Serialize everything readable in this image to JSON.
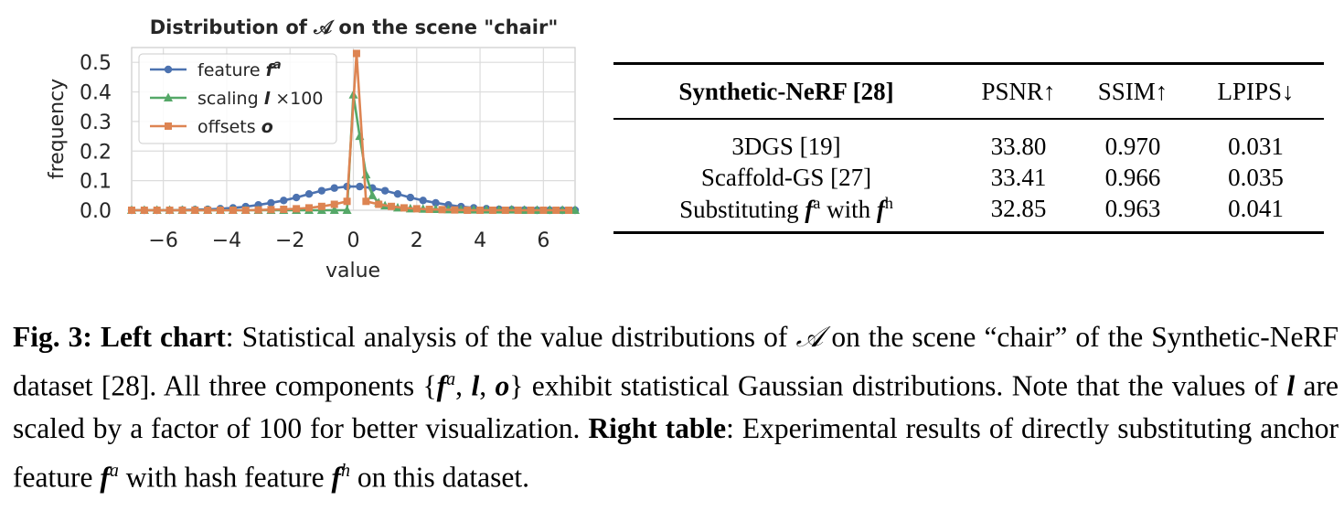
{
  "chart_data": {
    "type": "line",
    "title": "Distribution of 𝒜 on the scene \"chair\"",
    "xlabel": "value",
    "ylabel": "frequency",
    "xlim": [
      -7,
      7
    ],
    "ylim": [
      0,
      0.55
    ],
    "xticks": [
      -6,
      -4,
      -2,
      0,
      2,
      4,
      6
    ],
    "xtick_labels": [
      "−6",
      "−4",
      "−2",
      "0",
      "2",
      "4",
      "6"
    ],
    "yticks": [
      0.0,
      0.1,
      0.2,
      0.3,
      0.4,
      0.5
    ],
    "ytick_labels": [
      "0.0",
      "0.1",
      "0.2",
      "0.3",
      "0.4",
      "0.5"
    ],
    "grid": true,
    "legend_position": "top-left",
    "series": [
      {
        "name": "feature",
        "legend_math": "f",
        "legend_sup": "a",
        "legend_suffix": "",
        "color": "#4c72b0",
        "marker": "circle",
        "x": [
          -7.0,
          -6.6,
          -6.2,
          -5.8,
          -5.4,
          -5.0,
          -4.6,
          -4.2,
          -3.8,
          -3.4,
          -3.0,
          -2.6,
          -2.2,
          -1.8,
          -1.4,
          -1.0,
          -0.6,
          -0.2,
          0.2,
          0.6,
          1.0,
          1.4,
          1.8,
          2.2,
          2.6,
          3.0,
          3.4,
          3.8,
          4.2,
          4.6,
          5.0,
          5.4,
          5.8,
          6.2,
          6.6,
          7.0
        ],
        "y": [
          0.0,
          0.0,
          0.0,
          0.0,
          0.001,
          0.002,
          0.003,
          0.005,
          0.008,
          0.012,
          0.018,
          0.025,
          0.033,
          0.043,
          0.055,
          0.066,
          0.075,
          0.08,
          0.08,
          0.075,
          0.066,
          0.055,
          0.043,
          0.033,
          0.025,
          0.018,
          0.012,
          0.008,
          0.005,
          0.003,
          0.002,
          0.001,
          0.0,
          0.0,
          0.0,
          0.0
        ]
      },
      {
        "name": "scaling",
        "legend_math": "l",
        "legend_sup": "",
        "legend_suffix": " ×100",
        "color": "#55a868",
        "marker": "triangle",
        "x": [
          -7.0,
          -6.6,
          -6.2,
          -5.8,
          -5.4,
          -5.0,
          -4.6,
          -4.2,
          -3.8,
          -3.4,
          -3.0,
          -2.6,
          -2.2,
          -1.8,
          -1.4,
          -1.0,
          -0.6,
          -0.2,
          0.0,
          0.2,
          0.4,
          0.6,
          0.8,
          1.0,
          1.4,
          1.8,
          2.2,
          2.6,
          3.0,
          3.4,
          3.8,
          4.2,
          4.6,
          5.0,
          5.4,
          5.8,
          6.2,
          6.6,
          7.0
        ],
        "y": [
          0.0,
          0.0,
          0.0,
          0.0,
          0.0,
          0.0,
          0.0,
          0.0,
          0.0,
          0.0,
          0.0,
          0.0,
          0.0,
          0.0,
          0.0,
          0.0,
          0.0,
          0.0,
          0.39,
          0.25,
          0.12,
          0.05,
          0.025,
          0.015,
          0.008,
          0.005,
          0.004,
          0.003,
          0.002,
          0.002,
          0.001,
          0.001,
          0.001,
          0.001,
          0.0,
          0.0,
          0.0,
          0.0,
          0.0
        ]
      },
      {
        "name": "offsets",
        "legend_math": "o",
        "legend_sup": "",
        "legend_suffix": "",
        "color": "#dd8452",
        "marker": "square",
        "x": [
          -7.0,
          -6.6,
          -6.2,
          -5.8,
          -5.4,
          -5.0,
          -4.6,
          -4.2,
          -3.8,
          -3.4,
          -3.0,
          -2.6,
          -2.2,
          -1.8,
          -1.4,
          -1.0,
          -0.6,
          -0.2,
          0.1,
          0.4,
          0.8,
          1.2,
          1.6,
          2.0,
          2.4,
          2.8,
          3.2,
          3.6,
          4.0,
          4.4,
          4.8,
          5.2,
          5.6,
          6.0,
          6.4,
          6.8
        ],
        "y": [
          0.0,
          0.0,
          0.0,
          0.0,
          0.0,
          0.0,
          0.0,
          0.0,
          0.0,
          0.0,
          0.001,
          0.002,
          0.003,
          0.005,
          0.008,
          0.013,
          0.02,
          0.03,
          0.53,
          0.03,
          0.02,
          0.013,
          0.008,
          0.005,
          0.003,
          0.002,
          0.001,
          0.0,
          0.0,
          0.0,
          0.0,
          0.0,
          0.0,
          0.0,
          0.0,
          0.0
        ]
      }
    ]
  },
  "table": {
    "header": {
      "dataset": "Synthetic-NeRF [28]",
      "psnr": "PSNR↑",
      "ssim": "SSIM↑",
      "lpips": "LPIPS↓"
    },
    "rows": [
      {
        "method": "3DGS [19]",
        "psnr": "33.80",
        "ssim": "0.970",
        "lpips": "0.031"
      },
      {
        "method": "Scaffold-GS [27]",
        "psnr": "33.41",
        "ssim": "0.966",
        "lpips": "0.035"
      },
      {
        "method_prefix": "Substituting ",
        "math_a": "f",
        "sup_a": "a",
        "method_mid": " with ",
        "math_b": "f",
        "sup_b": "h",
        "psnr": "32.85",
        "ssim": "0.963",
        "lpips": "0.041"
      }
    ]
  },
  "caption": {
    "fig_label": "Fig. 3:",
    "left_chart_label": "Left chart",
    "text1": ": Statistical analysis of the value distributions of ",
    "script_a": "𝒜",
    "text2": " on the scene “chair” of the Synthetic-NeRF dataset [28]. All three components {",
    "f": "f",
    "sup_a": "a",
    "comma1": ", ",
    "l": "l",
    "comma2": ", ",
    "o": "o",
    "text3": "} exhibit statistical Gaussian distributions. Note that the values of ",
    "l2": "l",
    "text4": " are scaled by a factor of 100 for better visualization. ",
    "right_table_label": "Right table",
    "text5": ": Experimental results of directly substituting anchor feature ",
    "f2": "f",
    "sup_a2": "a",
    "text6": " with hash feature ",
    "f3": "f",
    "sup_h": "h",
    "text7": " on this dataset."
  }
}
